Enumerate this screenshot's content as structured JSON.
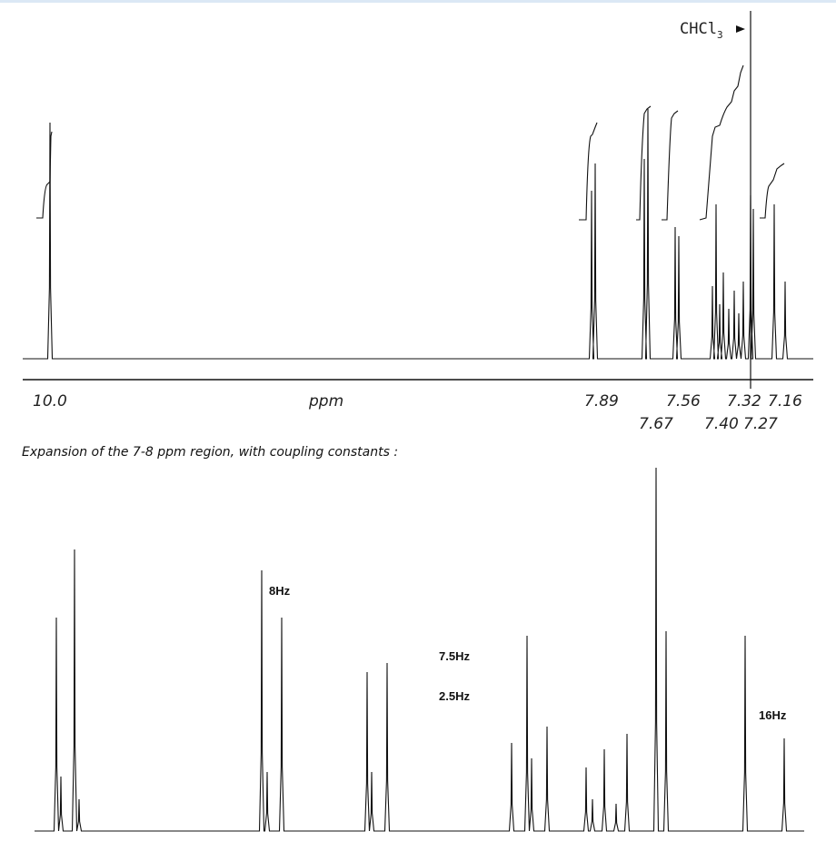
{
  "spectrum": {
    "solvent": {
      "text": "CHCl",
      "subscript": "3"
    },
    "axis": {
      "unit": "ppm",
      "upper_ticks": [
        "10.0",
        "7.89",
        "7.56",
        "7.32",
        "7.16"
      ],
      "lower_ticks": [
        "7.67",
        "7.40",
        "7.27"
      ]
    }
  },
  "caption": "Expansion of the 7-8 ppm region, with coupling constants :",
  "expansion": {
    "couplings": [
      "8Hz",
      "7.5Hz",
      "2.5Hz",
      "16Hz"
    ]
  }
}
